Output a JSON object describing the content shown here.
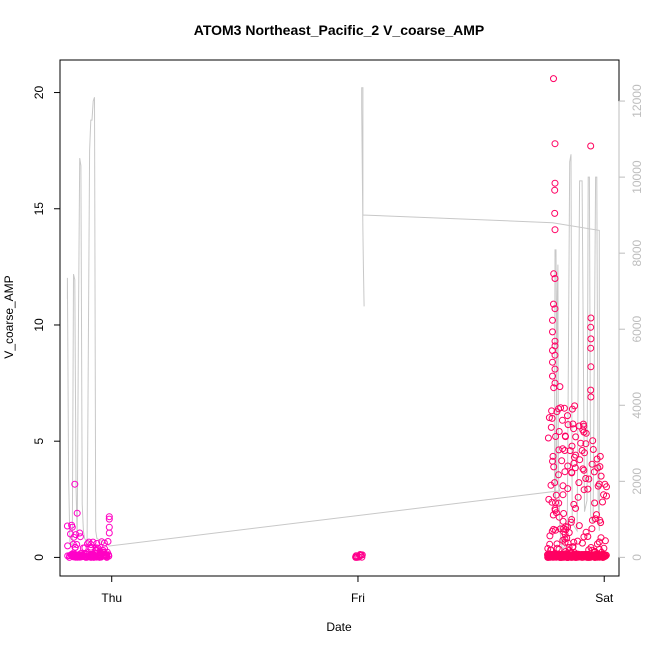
{
  "chart_data": {
    "type": "scatter",
    "title": "ATOM3 Northeast_Pacific_2 V_coarse_AMP",
    "xlabel": "Date",
    "ylabel": "V_coarse_AMP",
    "x_ticks": [
      "Thu",
      "Fri",
      "Sat"
    ],
    "x_range_days": [
      -0.21,
      2.06
    ],
    "y_ticks": [
      "0",
      "5",
      "10",
      "15",
      "20"
    ],
    "ylim": [
      -0.8,
      21.4
    ],
    "y2_ticks": [
      "0",
      "2000",
      "4000",
      "6000",
      "8000",
      "10000",
      "12000"
    ],
    "y2lim": [
      -490,
      13080
    ],
    "grid": false,
    "colors": {
      "points_start": "#ff00cc",
      "points_end": "#ff0055",
      "secondary_line": "#c8c8c8"
    },
    "series": [
      {
        "type": "points",
        "axis": "left",
        "segments": [
          {
            "t0": -0.18,
            "t1": -0.12,
            "n": 45,
            "max": 1.4,
            "peaks": [
              [
                -0.15,
                3.15
              ],
              [
                -0.14,
                1.9
              ],
              [
                -0.16,
                1.3
              ],
              [
                -0.18,
                1.35
              ],
              [
                -0.13,
                1.05
              ]
            ]
          },
          {
            "t0": -0.12,
            "t1": -0.01,
            "n": 90,
            "max": 0.7,
            "peaks": [
              [
                -0.01,
                1.75
              ],
              [
                -0.01,
                1.65
              ],
              [
                -0.01,
                1.3
              ],
              [
                -0.01,
                1.05
              ],
              [
                -0.06,
                0.6
              ]
            ]
          },
          {
            "t0": 0.99,
            "t1": 1.02,
            "n": 12,
            "max": 0.22,
            "peaks": []
          },
          {
            "t0": 1.77,
            "t1": 1.88,
            "n": 260,
            "max": 7.0,
            "peaks": [
              [
                1.794,
                20.6
              ],
              [
                1.8,
                17.8
              ],
              [
                1.8,
                16.1
              ],
              [
                1.799,
                15.8
              ],
              [
                1.799,
                14.8
              ],
              [
                1.8,
                14.1
              ],
              [
                1.795,
                12.2
              ],
              [
                1.8,
                12.0
              ],
              [
                1.794,
                10.9
              ],
              [
                1.8,
                10.7
              ],
              [
                1.79,
                10.2
              ],
              [
                1.79,
                9.7
              ],
              [
                1.8,
                9.3
              ],
              [
                1.8,
                9.1
              ],
              [
                1.79,
                8.9
              ],
              [
                1.8,
                8.7
              ],
              [
                1.79,
                8.4
              ],
              [
                1.8,
                8.1
              ],
              [
                1.79,
                7.8
              ],
              [
                1.8,
                7.5
              ],
              [
                1.795,
                7.3
              ],
              [
                1.82,
                7.35
              ],
              [
                1.83,
                5.9
              ],
              [
                1.84,
                4.6
              ]
            ]
          },
          {
            "t0": 1.88,
            "t1": 2.01,
            "n": 190,
            "max": 6.2,
            "peaks": [
              [
                1.945,
                17.7
              ],
              [
                1.946,
                10.3
              ],
              [
                1.945,
                9.9
              ],
              [
                1.946,
                9.4
              ],
              [
                1.945,
                9.0
              ],
              [
                1.946,
                8.2
              ],
              [
                1.945,
                7.2
              ],
              [
                1.946,
                6.9
              ],
              [
                1.91,
                4.6
              ],
              [
                1.92,
                4.5
              ]
            ]
          }
        ]
      },
      {
        "type": "line",
        "axis": "right",
        "points": [
          [
            -0.18,
            6800
          ],
          [
            -0.18,
            7350
          ],
          [
            -0.175,
            2100
          ],
          [
            -0.17,
            400
          ],
          [
            -0.16,
            300
          ],
          [
            -0.155,
            7450
          ],
          [
            -0.15,
            7300
          ],
          [
            -0.145,
            1900
          ],
          [
            -0.14,
            500
          ],
          [
            -0.135,
            6300
          ],
          [
            -0.13,
            10500
          ],
          [
            -0.125,
            10300
          ],
          [
            -0.12,
            1400
          ],
          [
            -0.115,
            700
          ],
          [
            -0.11,
            500
          ],
          [
            -0.1,
            400
          ],
          [
            -0.09,
            10700
          ],
          [
            -0.085,
            11500
          ],
          [
            -0.08,
            11500
          ],
          [
            -0.075,
            12000
          ],
          [
            -0.07,
            12100
          ],
          [
            -0.065,
            700
          ],
          [
            -0.06,
            500
          ],
          [
            -0.01,
            300
          ],
          [
            1.82,
            1750
          ],
          [
            1.808,
            2000
          ],
          [
            1.806,
            5500
          ],
          [
            1.804,
            8100
          ],
          [
            1.802,
            7900
          ],
          [
            1.8,
            8100
          ],
          [
            1.798,
            1700
          ],
          [
            1.802,
            1400
          ],
          [
            1.81,
            7000
          ],
          [
            1.812,
            7700
          ],
          [
            1.814,
            2400
          ],
          [
            1.82,
            700
          ],
          [
            1.83,
            200
          ],
          [
            1.84,
            300
          ],
          [
            1.85,
            900
          ],
          [
            1.86,
            10400
          ],
          [
            1.865,
            10600
          ],
          [
            1.87,
            900
          ],
          [
            1.89,
            700
          ],
          [
            1.9,
            9900
          ],
          [
            1.91,
            9900
          ],
          [
            1.92,
            1200
          ],
          [
            1.93,
            1500
          ],
          [
            1.935,
            10000
          ],
          [
            1.94,
            10000
          ],
          [
            1.945,
            1100
          ],
          [
            1.955,
            900
          ],
          [
            1.965,
            10000
          ],
          [
            1.97,
            10000
          ],
          [
            1.975,
            1400
          ],
          [
            1.978,
            1200
          ],
          [
            1.98,
            700
          ],
          [
            1.98,
            8600
          ],
          [
            1.79,
            8800
          ],
          [
            1.03,
            9000
          ],
          [
            1.02,
            9000
          ],
          [
            1.02,
            12350
          ],
          [
            1.015,
            12350
          ],
          [
            1.015,
            11850
          ],
          [
            1.02,
            8600
          ],
          [
            1.022,
            7650
          ],
          [
            1.025,
            6600
          ]
        ]
      }
    ]
  }
}
